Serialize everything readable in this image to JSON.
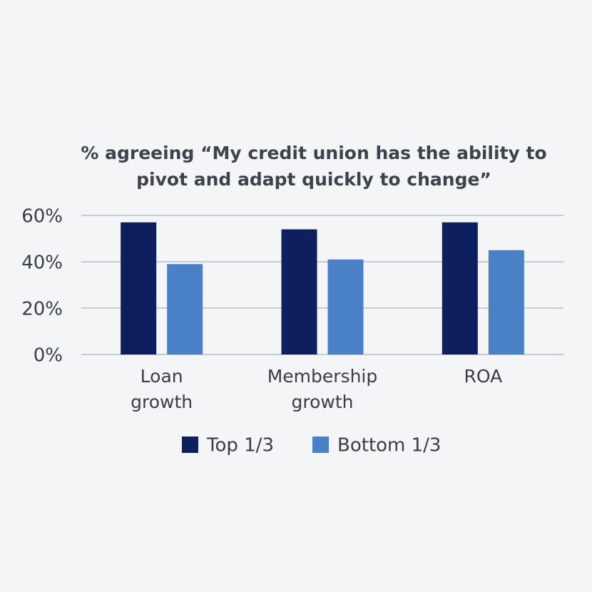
{
  "chart_data": {
    "type": "bar",
    "title": "% agreeing “My credit union has the ability to pivot and adapt quickly to change”",
    "categories": [
      "Loan growth",
      "Membership growth",
      "ROA"
    ],
    "series": [
      {
        "name": "Top 1/3",
        "color": "#0d1f5c",
        "values": [
          57,
          54,
          57
        ]
      },
      {
        "name": "Bottom 1/3",
        "color": "#4a80c6",
        "values": [
          39,
          41,
          45
        ]
      }
    ],
    "ylim": [
      0,
      60
    ],
    "yticks": [
      {
        "value": 0,
        "label": "0%"
      },
      {
        "value": 20,
        "label": "20%"
      },
      {
        "value": 40,
        "label": "40%"
      },
      {
        "value": 60,
        "label": "60%"
      }
    ],
    "grid": true,
    "legend": "bottom"
  }
}
